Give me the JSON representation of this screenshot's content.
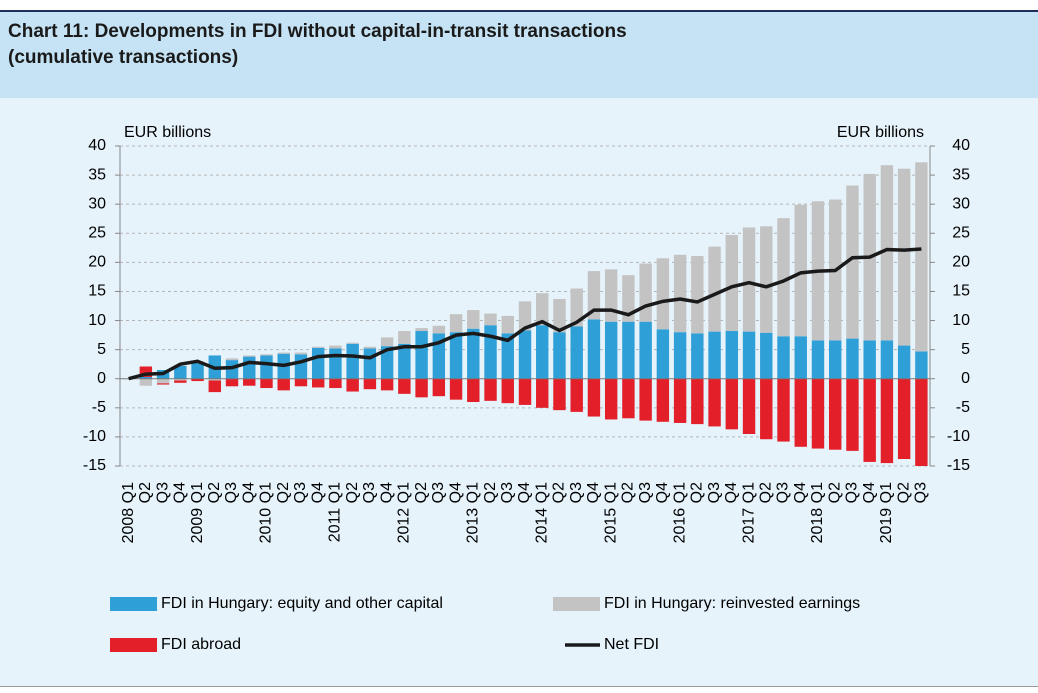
{
  "chart_data": {
    "type": "bar",
    "title": "Chart 11: Developments in FDI without capital-in-transit transactions",
    "subtitle": "(cumulative transactions)",
    "y_label": "EUR billions",
    "y2_label": "EUR billions",
    "categories": [
      "2008 Q1",
      "Q2",
      "Q3",
      "Q4",
      "2009 Q1",
      "Q2",
      "Q3",
      "Q4",
      "2010 Q1",
      "Q2",
      "Q3",
      "Q4",
      "2011 Q1",
      "Q2",
      "Q3",
      "Q4",
      "2012 Q1",
      "Q2",
      "Q3",
      "Q4",
      "2013 Q1",
      "Q2",
      "Q3",
      "Q4",
      "2014 Q1",
      "Q2",
      "Q3",
      "Q4",
      "2015 Q1",
      "Q2",
      "Q3",
      "Q4",
      "2016 Q1",
      "Q2",
      "Q3",
      "Q4",
      "2017 Q1",
      "Q2",
      "Q3",
      "Q4",
      "2018 Q1",
      "Q2",
      "Q3",
      "Q4",
      "2019 Q1",
      "Q2",
      "Q3"
    ],
    "series": [
      {
        "name": "FDI in Hungary: equity and other capital",
        "type": "bar",
        "color": "#2f9fd8",
        "values": [
          0,
          0.3,
          1.5,
          2.2,
          2.8,
          4.0,
          3.2,
          3.8,
          4.0,
          4.3,
          4.2,
          5.3,
          5.2,
          6.0,
          5.2,
          5.6,
          6.0,
          8.2,
          7.8,
          8.0,
          8.6,
          9.2,
          7.8,
          8.3,
          9.2,
          8.0,
          9.0,
          10.2,
          9.8,
          9.8,
          9.8,
          8.5,
          8.0,
          7.8,
          8.1,
          8.2,
          8.1,
          7.9,
          7.3,
          7.3,
          6.6,
          6.6,
          6.9,
          6.6,
          6.6,
          5.7,
          4.7
        ]
      },
      {
        "name": "FDI in Hungary: reinvested earnings",
        "type": "bar",
        "color": "#c3c3c3",
        "values": [
          0,
          -1.2,
          -0.8,
          -0.3,
          0.2,
          -0.3,
          0.3,
          0.2,
          0.2,
          0.2,
          0.3,
          0.2,
          0.5,
          0.2,
          0.3,
          1.5,
          2.2,
          0.5,
          1.3,
          3.1,
          3.2,
          2.0,
          3.0,
          5.0,
          5.5,
          5.7,
          6.5,
          8.3,
          9.0,
          8.0,
          10.0,
          12.2,
          13.3,
          13.3,
          14.6,
          16.5,
          17.9,
          18.3,
          20.3,
          22.6,
          23.9,
          24.2,
          26.3,
          28.6,
          30.1,
          30.4,
          32.5
        ]
      },
      {
        "name": "FDI abroad",
        "type": "bar",
        "color": "#e3202a",
        "values": [
          0,
          1.8,
          -0.2,
          -0.4,
          -0.4,
          -2.0,
          -1.3,
          -1.2,
          -1.6,
          -2.0,
          -1.3,
          -1.5,
          -1.6,
          -2.2,
          -1.8,
          -2.0,
          -2.6,
          -3.2,
          -3.0,
          -3.6,
          -4.0,
          -3.8,
          -4.2,
          -4.5,
          -5.0,
          -5.4,
          -5.7,
          -6.5,
          -7.0,
          -6.8,
          -7.2,
          -7.4,
          -7.6,
          -7.8,
          -8.2,
          -8.7,
          -9.5,
          -10.4,
          -10.8,
          -11.7,
          -12.0,
          -12.2,
          -12.4,
          -14.3,
          -14.5,
          -13.8,
          -15.0
        ]
      },
      {
        "name": "Net FDI",
        "type": "line",
        "color": "#1a1a1a",
        "values": [
          0,
          0.8,
          0.9,
          2.5,
          3.0,
          1.8,
          1.9,
          2.8,
          2.6,
          2.3,
          2.9,
          3.8,
          4.0,
          3.9,
          3.6,
          5.0,
          5.5,
          5.5,
          6.2,
          7.5,
          7.8,
          7.3,
          6.6,
          8.7,
          9.8,
          8.3,
          9.7,
          11.8,
          11.8,
          11.0,
          12.5,
          13.3,
          13.7,
          13.2,
          14.5,
          15.8,
          16.5,
          15.8,
          16.8,
          18.2,
          18.5,
          18.6,
          20.8,
          20.9,
          22.2,
          22.1,
          22.3
        ]
      }
    ],
    "ylim": [
      -15,
      40
    ],
    "yticks": [
      -15,
      -10,
      -5,
      0,
      5,
      10,
      15,
      20,
      25,
      30,
      35,
      40
    ],
    "y2lim": [
      -15,
      40
    ],
    "y2ticks": [
      -15,
      -10,
      -5,
      0,
      5,
      10,
      15,
      20,
      25,
      30,
      35,
      40
    ],
    "grid": true
  }
}
